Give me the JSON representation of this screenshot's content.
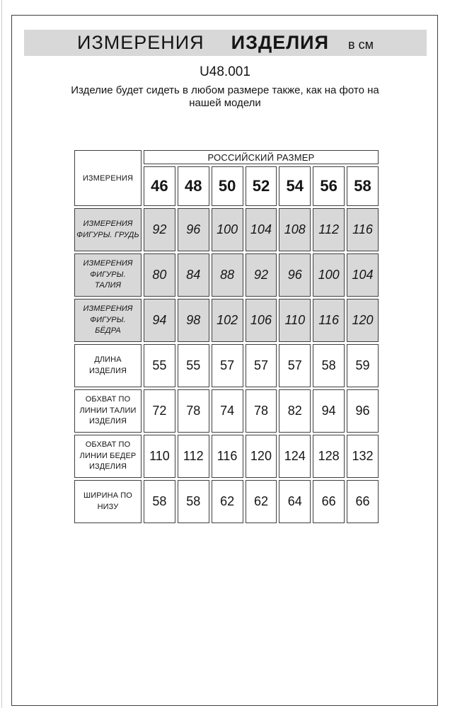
{
  "header": {
    "title_part1": "ИЗМЕРЕНИЯ",
    "title_part2": "ИЗДЕЛИЯ",
    "unit": "в см",
    "product_code": "U48.001",
    "subtitle_line1": "Изделие будет сидеть в любом размере также, как на фото на",
    "subtitle_line2": "нашей модели"
  },
  "table": {
    "corner_label": "ИЗМЕРЕНИЯ",
    "group_header": "РОССИЙСКИЙ РАЗМЕР",
    "sizes": [
      "46",
      "48",
      "50",
      "52",
      "54",
      "56",
      "58"
    ],
    "rows": [
      {
        "label": "ИЗМЕРЕНИЯ\nФИГУРЫ. ГРУДЬ",
        "shaded": true,
        "values": [
          92,
          96,
          100,
          104,
          108,
          112,
          116
        ]
      },
      {
        "label": "ИЗМЕРЕНИЯ\nФИГУРЫ. ТАЛИЯ",
        "shaded": true,
        "values": [
          80,
          84,
          88,
          92,
          96,
          100,
          104
        ]
      },
      {
        "label": "ИЗМЕРЕНИЯ\nФИГУРЫ. БЁДРА",
        "shaded": true,
        "values": [
          94,
          98,
          102,
          106,
          110,
          116,
          120
        ]
      },
      {
        "label": "ДЛИНА ИЗДЕЛИЯ",
        "shaded": false,
        "values": [
          55,
          55,
          57,
          57,
          57,
          58,
          59
        ]
      },
      {
        "label": "ОБХВАТ ПО\nЛИНИИ ТАЛИИ\nИЗДЕЛИЯ",
        "shaded": false,
        "values": [
          72,
          78,
          74,
          78,
          82,
          94,
          96
        ]
      },
      {
        "label": "ОБХВАТ ПО\nЛИНИИ БЕДЕР\nИЗДЕЛИЯ",
        "shaded": false,
        "values": [
          110,
          112,
          116,
          120,
          124,
          128,
          132
        ]
      },
      {
        "label": "ШИРИНА ПО\nНИЗУ",
        "shaded": false,
        "values": [
          58,
          58,
          62,
          62,
          64,
          66,
          66
        ]
      }
    ]
  },
  "colors": {
    "shade_gray": "#d8d8d8",
    "border_dark": "#3f3f3f"
  }
}
